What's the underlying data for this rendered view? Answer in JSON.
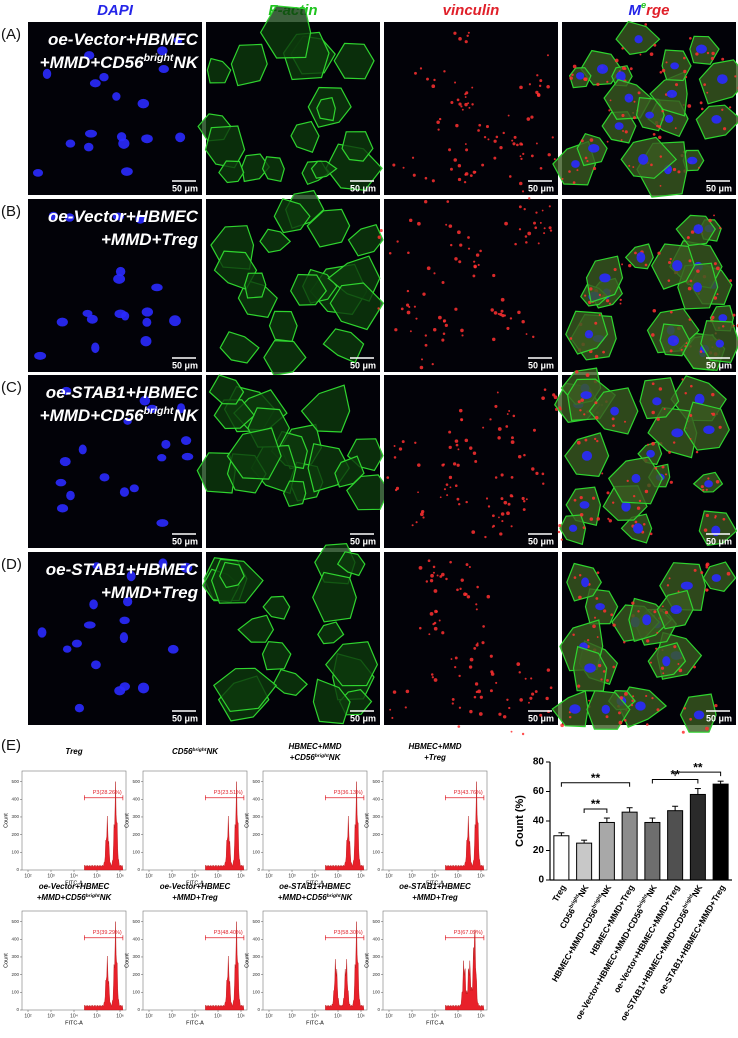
{
  "micrographs": {
    "columns": [
      {
        "label": [
          "DAPI"
        ],
        "colors": [
          "#2424e8"
        ]
      },
      {
        "label": [
          "F-actin"
        ],
        "colors": [
          "#1fc41f"
        ]
      },
      {
        "label": [
          "vinculin"
        ],
        "colors": [
          "#e0202a"
        ]
      },
      {
        "label": [
          "M",
          "e",
          "rge"
        ],
        "colors": [
          "#2424e8",
          "#1fc41f",
          "#e0202a"
        ]
      }
    ],
    "rows": [
      {
        "label": "(A)",
        "title": [
          [
            "oe-Vector+HBMEC"
          ],
          [
            "+MMD+CD56",
            "bright",
            "NK"
          ]
        ]
      },
      {
        "label": "(B)",
        "title": [
          [
            "oe-Vector+HBMEC"
          ],
          [
            "+MMD+Treg"
          ]
        ]
      },
      {
        "label": "(C)",
        "title": [
          [
            "oe-STAB1+HBMEC"
          ],
          [
            "+MMD+CD56",
            "bright",
            "NK"
          ]
        ]
      },
      {
        "label": "(D)",
        "title": [
          [
            "oe-STAB1+HBMEC"
          ],
          [
            "+MMD+Treg"
          ]
        ]
      }
    ],
    "scale_bar": "50 μm"
  },
  "flow": {
    "label": "(E)",
    "y_axis_label": "Count",
    "x_axis_label": "FITC-A",
    "ylim": [
      0,
      560
    ],
    "yticks": [
      0,
      100,
      200,
      300,
      400,
      500
    ],
    "xtick_labels": [
      "10²",
      "10³",
      "10⁴",
      "10⁵",
      "10⁶"
    ],
    "panels": [
      {
        "title": [
          [
            "Treg"
          ]
        ],
        "gate": "P3(28.26%)"
      },
      {
        "title": [
          [
            "CD56",
            "bright",
            "NK"
          ]
        ],
        "gate": "P3(23.51%)"
      },
      {
        "title": [
          [
            "HBMEC+MMD"
          ],
          [
            "+CD56",
            "bright",
            "NK"
          ]
        ],
        "gate": "P3(36.13%)"
      },
      {
        "title": [
          [
            "HBMEC+MMD"
          ],
          [
            "+Treg"
          ]
        ],
        "gate": "P3(43.76%)"
      },
      {
        "title": [
          [
            "oe-Vector+HBMEC"
          ],
          [
            "+MMD+CD56",
            "bright",
            "NK"
          ]
        ],
        "gate": "P3(39.29%)"
      },
      {
        "title": [
          [
            "oe-Vector+HBMEC"
          ],
          [
            "+MMD+Treg"
          ]
        ],
        "gate": "P3(48.40%)"
      },
      {
        "title": [
          [
            "oe-STAB1+HBMEC"
          ],
          [
            "+MMD+CD56",
            "bright",
            "NK"
          ]
        ],
        "gate": "P3(58.30%)"
      },
      {
        "title": [
          [
            "oe-STAB1+HBMEC"
          ],
          [
            "+MMD+Treg"
          ]
        ],
        "gate": "P3(67.09%)"
      }
    ]
  },
  "chart_data": {
    "type": "bar",
    "y_axis_label": "Count (%)",
    "categories": [
      [
        "Treg"
      ],
      [
        "CD56",
        "bright",
        "NK"
      ],
      [
        "HBMEC+MMD+CD56",
        "bright",
        "NK"
      ],
      [
        "HBMEC+MMD+Treg"
      ],
      [
        "oe-Vector+HBMEC+MMD+CD56",
        "bright",
        "NK"
      ],
      [
        "oe-Vector+HBMEC+MMD+Treg"
      ],
      [
        "oe-STAB1+HBMEC+MMD+CD56",
        "bright",
        "NK"
      ],
      [
        "oe-STAB1+HBMEC+MMD+Treg"
      ]
    ],
    "values": [
      30,
      25,
      39,
      46,
      39,
      47,
      58,
      65
    ],
    "errors": [
      2,
      2,
      3,
      3,
      3,
      3,
      4,
      2
    ],
    "colors": [
      "#ffffff",
      "#c8c8c8",
      "#a8a8a8",
      "#8c8c8c",
      "#6e6e6e",
      "#505050",
      "#2a2a2a",
      "#000000"
    ],
    "ylim": [
      0,
      80
    ],
    "yticks": [
      0,
      20,
      40,
      60,
      80
    ],
    "comparisons": [
      {
        "between": [
          1,
          2
        ],
        "label": "**"
      },
      {
        "between": [
          0,
          3
        ],
        "label": "**"
      },
      {
        "between": [
          4,
          6
        ],
        "label": "**"
      },
      {
        "between": [
          5,
          7
        ],
        "label": "**"
      }
    ]
  }
}
